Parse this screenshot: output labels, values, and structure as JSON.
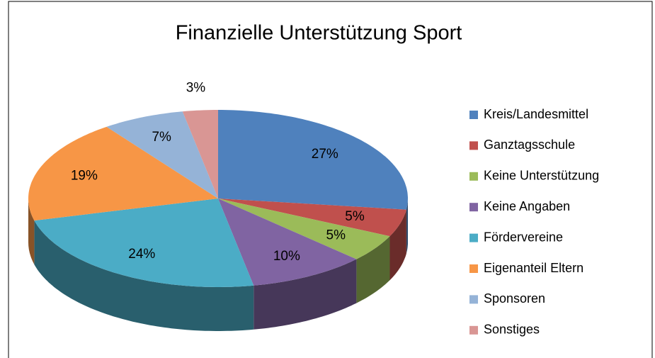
{
  "chart_data": {
    "type": "pie3d",
    "title": "Finanzielle Unterstützung Sport",
    "categories": [
      "Kreis/Landesmittel",
      "Ganztagsschule",
      "Keine Unterstützung",
      "Keine Angaben",
      "Fördervereine",
      "Eigenanteil Eltern",
      "Sponsoren",
      "Sonstiges"
    ],
    "values": [
      27,
      5,
      5,
      10,
      24,
      19,
      7,
      3
    ],
    "value_labels": [
      "27%",
      "5%",
      "5%",
      "10%",
      "24%",
      "19%",
      "7%",
      "3%"
    ],
    "colors": [
      "#4f81bd",
      "#c0504d",
      "#9bbb59",
      "#8064a2",
      "#4bacc6",
      "#f79646",
      "#95b3d7",
      "#d99694"
    ],
    "legend": "right"
  }
}
